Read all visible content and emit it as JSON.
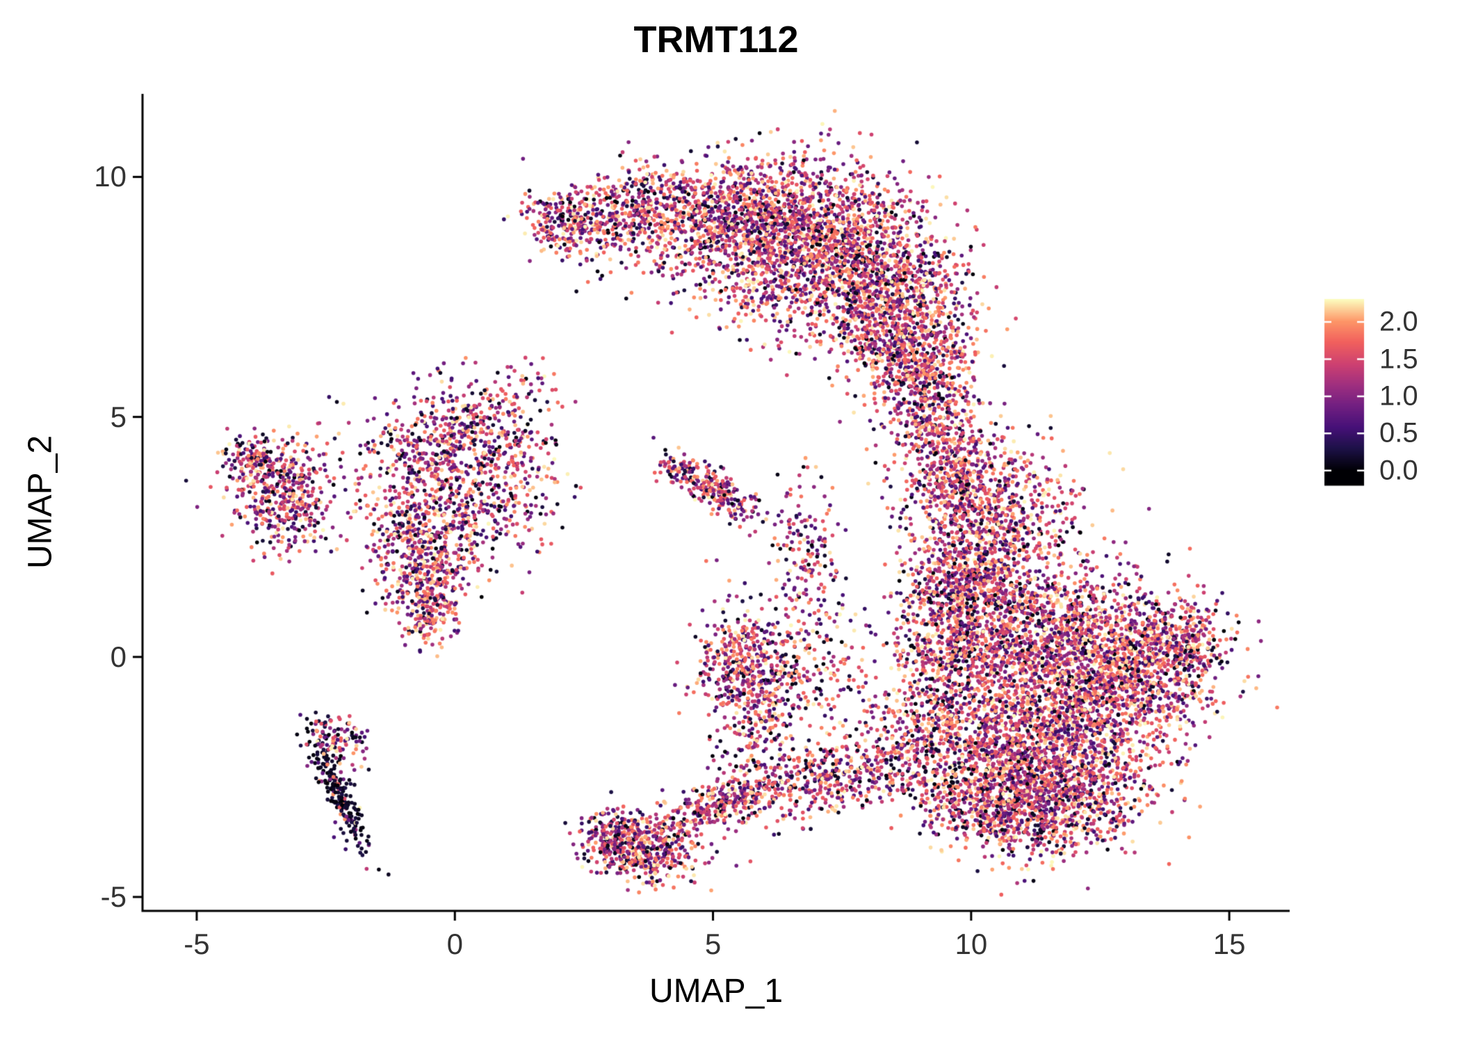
{
  "chart_data": {
    "type": "scatter",
    "title": "TRMT112",
    "xlabel": "UMAP_1",
    "ylabel": "UMAP_2",
    "xlim": [
      -6.05,
      16.17
    ],
    "ylim": [
      -5.29,
      11.73
    ],
    "xticks": [
      {
        "v": -5,
        "label": "-5"
      },
      {
        "v": 0,
        "label": "0"
      },
      {
        "v": 5,
        "label": "5"
      },
      {
        "v": 10,
        "label": "10"
      },
      {
        "v": 15,
        "label": "15"
      }
    ],
    "yticks": [
      {
        "v": 10,
        "label": "10"
      },
      {
        "v": 5,
        "label": "5"
      },
      {
        "v": 0,
        "label": "0"
      },
      {
        "v": -5,
        "label": "-5"
      }
    ],
    "grid": false,
    "background": "#ffffff",
    "axis_color": "#000000",
    "point_radius_px": 2.8,
    "value_max": 2.31,
    "legend": {
      "type": "colorbar",
      "position": "right",
      "colormap": "magma",
      "domain": [
        -0.19,
        2.31
      ],
      "ticks": [
        {
          "v": 2.0,
          "label": "2.0"
        },
        {
          "v": 1.5,
          "label": "1.5"
        },
        {
          "v": 1.0,
          "label": "1.0"
        },
        {
          "v": 0.5,
          "label": "0.5"
        },
        {
          "v": 0.0,
          "label": "0.0"
        }
      ]
    },
    "colormap_stops": [
      [
        0.0,
        "#000004"
      ],
      [
        0.13,
        "#1d1147"
      ],
      [
        0.25,
        "#451077"
      ],
      [
        0.38,
        "#721f81"
      ],
      [
        0.5,
        "#9f2f7f"
      ],
      [
        0.62,
        "#cd4071"
      ],
      [
        0.75,
        "#f1605d"
      ],
      [
        0.87,
        "#fd9567"
      ],
      [
        1.0,
        "#fcfdbf"
      ]
    ],
    "clusters": [
      {
        "name": "crescent-tip-left",
        "cx": 2.2,
        "cy": 9.05,
        "sx": 0.45,
        "sy": 0.35,
        "rot": -20,
        "n": 260,
        "mix": [
          0.6,
          0.28,
          0.12
        ]
      },
      {
        "name": "crescent-left",
        "cx": 3.5,
        "cy": 9.35,
        "sx": 0.6,
        "sy": 0.45,
        "rot": 0,
        "n": 380,
        "mix": [
          0.6,
          0.28,
          0.12
        ]
      },
      {
        "name": "crescent-mid",
        "cx": 5.3,
        "cy": 9.25,
        "sx": 0.85,
        "sy": 0.55,
        "rot": 0,
        "n": 700,
        "mix": [
          0.62,
          0.27,
          0.11
        ]
      },
      {
        "name": "crescent-core",
        "cx": 7.0,
        "cy": 8.7,
        "sx": 1.0,
        "sy": 0.85,
        "rot": -15,
        "n": 1400,
        "mix": [
          0.63,
          0.26,
          0.11
        ]
      },
      {
        "name": "crescent-right",
        "cx": 8.4,
        "cy": 7.5,
        "sx": 0.75,
        "sy": 0.85,
        "rot": 0,
        "n": 900,
        "mix": [
          0.63,
          0.26,
          0.11
        ]
      },
      {
        "name": "crescent-lower-right",
        "cx": 8.9,
        "cy": 6.2,
        "sx": 0.55,
        "sy": 0.65,
        "rot": 0,
        "n": 480,
        "mix": [
          0.62,
          0.27,
          0.11
        ]
      },
      {
        "name": "crescent-inner-sparse",
        "cx": 6.0,
        "cy": 7.8,
        "sx": 0.9,
        "sy": 0.6,
        "rot": -10,
        "n": 220,
        "mix": [
          0.6,
          0.28,
          0.12
        ]
      },
      {
        "name": "crescent-below-sparse",
        "cx": 4.3,
        "cy": 8.3,
        "sx": 0.8,
        "sy": 0.5,
        "rot": 0,
        "n": 90,
        "mix": [
          0.55,
          0.3,
          0.15
        ]
      },
      {
        "name": "neck-upper",
        "cx": 9.2,
        "cy": 5.1,
        "sx": 0.45,
        "sy": 0.75,
        "rot": 0,
        "n": 320,
        "mix": [
          0.6,
          0.28,
          0.12
        ]
      },
      {
        "name": "neck-lower",
        "cx": 9.7,
        "cy": 3.9,
        "sx": 0.5,
        "sy": 0.6,
        "rot": 0,
        "n": 300,
        "mix": [
          0.62,
          0.27,
          0.11
        ]
      },
      {
        "name": "right-top",
        "cx": 10.4,
        "cy": 2.9,
        "sx": 0.8,
        "sy": 0.8,
        "rot": 0,
        "n": 750,
        "mix": [
          0.63,
          0.26,
          0.11
        ]
      },
      {
        "name": "right-upper-left",
        "cx": 9.9,
        "cy": 1.3,
        "sx": 0.65,
        "sy": 0.75,
        "rot": 0,
        "n": 600,
        "mix": [
          0.6,
          0.27,
          0.13
        ]
      },
      {
        "name": "right-core",
        "cx": 11.3,
        "cy": 0.2,
        "sx": 1.15,
        "sy": 0.95,
        "rot": 0,
        "n": 1600,
        "mix": [
          0.63,
          0.26,
          0.11
        ]
      },
      {
        "name": "right-east",
        "cx": 13.0,
        "cy": -0.3,
        "sx": 0.85,
        "sy": 0.8,
        "rot": 0,
        "n": 1000,
        "mix": [
          0.62,
          0.26,
          0.12
        ]
      },
      {
        "name": "right-protrusion",
        "cx": 14.1,
        "cy": 0.3,
        "sx": 0.4,
        "sy": 0.45,
        "rot": 0,
        "n": 260,
        "mix": [
          0.6,
          0.28,
          0.12
        ]
      },
      {
        "name": "right-lower",
        "cx": 11.0,
        "cy": -1.9,
        "sx": 1.0,
        "sy": 0.75,
        "rot": 0,
        "n": 1100,
        "mix": [
          0.62,
          0.26,
          0.12
        ]
      },
      {
        "name": "right-bottom",
        "cx": 11.9,
        "cy": -2.9,
        "sx": 0.85,
        "sy": 0.6,
        "rot": 20,
        "n": 800,
        "mix": [
          0.6,
          0.27,
          0.13
        ]
      },
      {
        "name": "right-bottom-left",
        "cx": 10.3,
        "cy": -3.1,
        "sx": 0.6,
        "sy": 0.5,
        "rot": 0,
        "n": 380,
        "mix": [
          0.6,
          0.27,
          0.13
        ]
      },
      {
        "name": "right-west-edge",
        "cx": 9.4,
        "cy": -0.6,
        "sx": 0.45,
        "sy": 1.0,
        "rot": 0,
        "n": 320,
        "mix": [
          0.58,
          0.28,
          0.14
        ]
      },
      {
        "name": "right-west-sparse",
        "cx": 8.8,
        "cy": -1.9,
        "sx": 0.55,
        "sy": 0.7,
        "rot": 0,
        "n": 160,
        "mix": [
          0.55,
          0.3,
          0.15
        ]
      },
      {
        "name": "band-diagonal",
        "cx": 7.3,
        "cy": -2.55,
        "sx": 1.1,
        "sy": 0.35,
        "rot": 12,
        "n": 480,
        "mix": [
          0.6,
          0.27,
          0.13
        ]
      },
      {
        "name": "mid-scatter",
        "cx": 6.9,
        "cy": -0.4,
        "sx": 0.8,
        "sy": 0.9,
        "rot": 0,
        "n": 240,
        "mix": [
          0.55,
          0.3,
          0.15
        ]
      },
      {
        "name": "mid-blob",
        "cx": 5.65,
        "cy": -0.1,
        "sx": 0.5,
        "sy": 0.55,
        "rot": 0,
        "n": 380,
        "mix": [
          0.62,
          0.27,
          0.11
        ]
      },
      {
        "name": "mid-vertical-band",
        "cx": 6.8,
        "cy": 2.1,
        "sx": 0.35,
        "sy": 0.9,
        "rot": 0,
        "n": 160,
        "mix": [
          0.55,
          0.3,
          0.15
        ]
      },
      {
        "name": "mid-band-lower",
        "cx": 5.85,
        "cy": -1.5,
        "sx": 0.4,
        "sy": 0.8,
        "rot": 0,
        "n": 200,
        "mix": [
          0.58,
          0.28,
          0.14
        ]
      },
      {
        "name": "small-mid-streak",
        "cx": 5.05,
        "cy": 3.45,
        "sx": 0.55,
        "sy": 0.22,
        "rot": -35,
        "n": 230,
        "mix": [
          0.6,
          0.27,
          0.13
        ]
      },
      {
        "name": "small-mid-dot",
        "cx": 4.25,
        "cy": 3.95,
        "sx": 0.18,
        "sy": 0.15,
        "rot": 0,
        "n": 45,
        "mix": [
          0.6,
          0.27,
          0.13
        ]
      },
      {
        "name": "leftmid-top",
        "cx": 0.0,
        "cy": 4.45,
        "sx": 0.95,
        "sy": 0.45,
        "rot": 0,
        "n": 380,
        "mix": [
          0.55,
          0.3,
          0.15
        ]
      },
      {
        "name": "leftmid-core",
        "cx": -0.3,
        "cy": 3.2,
        "sx": 0.75,
        "sy": 0.7,
        "rot": 0,
        "n": 500,
        "mix": [
          0.55,
          0.3,
          0.15
        ]
      },
      {
        "name": "leftmid-lower",
        "cx": -0.65,
        "cy": 2.0,
        "sx": 0.5,
        "sy": 0.55,
        "rot": 0,
        "n": 260,
        "mix": [
          0.55,
          0.3,
          0.15
        ]
      },
      {
        "name": "leftmid-streak",
        "cx": -0.5,
        "cy": 1.15,
        "sx": 0.3,
        "sy": 0.5,
        "rot": 0,
        "n": 220,
        "mix": [
          0.62,
          0.27,
          0.11
        ]
      },
      {
        "name": "leftmid-upper-sparse",
        "cx": 0.3,
        "cy": 5.3,
        "sx": 0.5,
        "sy": 0.45,
        "rot": 0,
        "n": 90,
        "mix": [
          0.55,
          0.3,
          0.15
        ]
      },
      {
        "name": "leftmid-right-sparse",
        "cx": 1.2,
        "cy": 3.7,
        "sx": 0.5,
        "sy": 0.8,
        "rot": 0,
        "n": 160,
        "mix": [
          0.55,
          0.3,
          0.15
        ]
      },
      {
        "name": "leftmid-topright-dots",
        "cx": 1.4,
        "cy": 5.7,
        "sx": 0.35,
        "sy": 0.3,
        "rot": 0,
        "n": 35,
        "mix": [
          0.55,
          0.3,
          0.15
        ]
      },
      {
        "name": "farleft-core",
        "cx": -3.35,
        "cy": 3.35,
        "sx": 0.5,
        "sy": 0.55,
        "rot": 0,
        "n": 420,
        "mix": [
          0.58,
          0.28,
          0.14
        ]
      },
      {
        "name": "farleft-arm",
        "cx": -3.9,
        "cy": 4.2,
        "sx": 0.3,
        "sy": 0.22,
        "rot": 15,
        "n": 130,
        "mix": [
          0.6,
          0.27,
          0.13
        ]
      },
      {
        "name": "dark-streak",
        "cx": -2.3,
        "cy": -2.7,
        "sx": 0.75,
        "sy": 0.13,
        "rot": -68,
        "n": 240,
        "mix": [
          0.06,
          0.14,
          0.8
        ]
      },
      {
        "name": "streak-top-colored",
        "cx": -2.25,
        "cy": -1.7,
        "sx": 0.3,
        "sy": 0.2,
        "rot": -40,
        "n": 90,
        "mix": [
          0.5,
          0.3,
          0.2
        ]
      },
      {
        "name": "bottom-core",
        "cx": 3.6,
        "cy": -4.0,
        "sx": 0.55,
        "sy": 0.33,
        "rot": -10,
        "n": 480,
        "mix": [
          0.6,
          0.26,
          0.14
        ]
      },
      {
        "name": "bottom-tail",
        "cx": 4.9,
        "cy": -3.15,
        "sx": 0.6,
        "sy": 0.25,
        "rot": 30,
        "n": 260,
        "mix": [
          0.6,
          0.27,
          0.13
        ]
      },
      {
        "name": "bottom-left-tip",
        "cx": 2.95,
        "cy": -3.7,
        "sx": 0.25,
        "sy": 0.3,
        "rot": 0,
        "n": 80,
        "mix": [
          0.55,
          0.28,
          0.17
        ]
      }
    ]
  }
}
